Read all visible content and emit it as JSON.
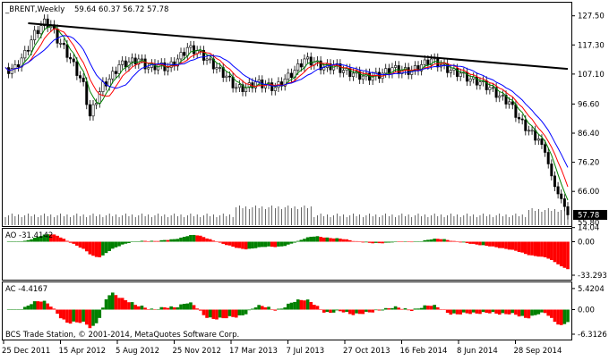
{
  "header": {
    "symbol": "_BRENT,Weekly",
    "ohlc": "59.64 60.37 56.72 57.78"
  },
  "ao_panel": {
    "label": "AO -31.4142"
  },
  "ac_panel": {
    "label": "AC -4.4167"
  },
  "copyright": "BCS Trade Station, © 2001-2014, MetaQuotes Software Corp.",
  "colors": {
    "up": "#008000",
    "down": "#ff0000",
    "candle": "#000000",
    "trendline": "#000000",
    "ma_fast": "#008000",
    "ma_mid": "#ff0000",
    "ma_slow": "#0000ff"
  },
  "chart_data": [
    {
      "type": "candlestick",
      "title": "_BRENT,Weekly",
      "ylim": [
        55.8,
        131.5
      ],
      "y_ticks": [
        "127.50",
        "117.30",
        "107.10",
        "96.60",
        "86.40",
        "76.20",
        "66.00"
      ],
      "y_tick_values": [
        127.5,
        117.3,
        107.1,
        96.6,
        86.4,
        76.2,
        66.0
      ],
      "volume_scale_label": "55.80",
      "last_price_label": "57.78",
      "last_price": 57.78,
      "x_labels": [
        "25 Dec 2011",
        "15 Apr 2012",
        "5 Aug 2012",
        "25 Nov 2012",
        "17 Mar 2013",
        "7 Jul 2013",
        "27 Oct 2013",
        "16 Feb 2014",
        "8 Jun 2014",
        "28 Sep 2014"
      ],
      "price_path": [
        [
          0,
          108
        ],
        [
          3,
          109
        ],
        [
          6,
          114
        ],
        [
          9,
          121
        ],
        [
          12,
          125
        ],
        [
          14,
          124
        ],
        [
          16,
          119
        ],
        [
          18,
          116
        ],
        [
          21,
          110
        ],
        [
          24,
          103
        ],
        [
          26,
          92
        ],
        [
          28,
          98
        ],
        [
          30,
          103
        ],
        [
          32,
          105
        ],
        [
          35,
          110
        ],
        [
          38,
          111
        ],
        [
          41,
          112
        ],
        [
          44,
          109
        ],
        [
          47,
          110
        ],
        [
          50,
          109
        ],
        [
          53,
          112
        ],
        [
          56,
          116
        ],
        [
          59,
          115
        ],
        [
          62,
          112
        ],
        [
          65,
          109
        ],
        [
          68,
          106
        ],
        [
          71,
          102
        ],
        [
          74,
          102
        ],
        [
          77,
          104
        ],
        [
          80,
          103
        ],
        [
          83,
          102
        ],
        [
          86,
          105
        ],
        [
          89,
          108
        ],
        [
          92,
          112
        ],
        [
          95,
          111
        ],
        [
          98,
          109
        ],
        [
          101,
          110
        ],
        [
          104,
          108
        ],
        [
          107,
          107
        ],
        [
          110,
          106
        ],
        [
          113,
          106
        ],
        [
          116,
          107
        ],
        [
          119,
          109
        ],
        [
          122,
          108
        ],
        [
          125,
          108
        ],
        [
          128,
          110
        ],
        [
          131,
          112
        ],
        [
          134,
          110
        ],
        [
          137,
          108
        ],
        [
          140,
          107
        ],
        [
          143,
          105
        ],
        [
          146,
          104
        ],
        [
          149,
          102
        ],
        [
          152,
          99
        ],
        [
          155,
          97
        ],
        [
          158,
          91
        ],
        [
          161,
          87
        ],
        [
          164,
          84
        ],
        [
          166,
          80
        ],
        [
          168,
          71
        ],
        [
          170,
          65
        ],
        [
          172,
          61
        ],
        [
          173,
          57.78
        ]
      ],
      "trendline": [
        [
          7,
          124.9
        ],
        [
          173,
          108.9
        ]
      ],
      "series": [
        {
          "name": "",
          "color": "#008000"
        },
        {
          "name": "",
          "color": "#ff0000"
        },
        {
          "name": "",
          "color": "#0000ff"
        }
      ]
    },
    {
      "type": "histogram",
      "title": "AO -31.4142",
      "y_ticks": [
        "14.04",
        "0.00",
        "-33.293"
      ],
      "y_tick_values": [
        14.04,
        0.0,
        -33.293
      ],
      "ylim": [
        -36,
        16
      ]
    },
    {
      "type": "histogram",
      "title": "AC -4.4167",
      "y_ticks": [
        "5.4204",
        "0.00",
        "-6.3126"
      ],
      "y_tick_values": [
        5.4204,
        0.0,
        -6.3126
      ],
      "ylim": [
        -6.8,
        6.8
      ]
    }
  ]
}
